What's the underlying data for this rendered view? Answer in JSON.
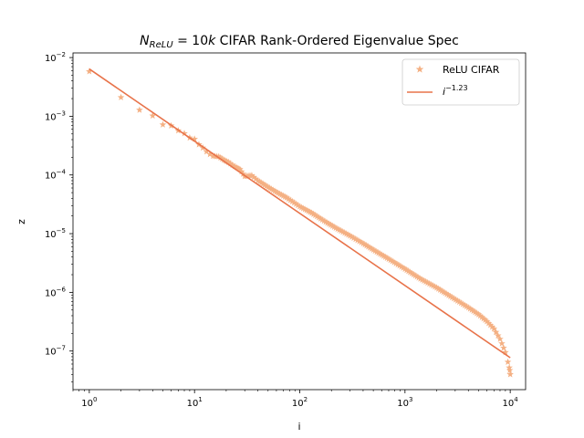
{
  "chart_data": {
    "type": "scatter",
    "title": {
      "n_symbol": "N",
      "n_subscript": "ReLU",
      "equals": " = 10",
      "k": "k",
      "rest": " CIFAR Rank-Ordered Eigenvalue Spec"
    },
    "xlabel": "i",
    "ylabel": "z",
    "xscale": "log",
    "yscale": "log",
    "xlim": [
      0.7,
      14000
    ],
    "ylim": [
      2.2e-08,
      0.012
    ],
    "x_ticks": [
      {
        "value": 1,
        "base": "10",
        "exp": "0"
      },
      {
        "value": 10,
        "base": "10",
        "exp": "1"
      },
      {
        "value": 100,
        "base": "10",
        "exp": "2"
      },
      {
        "value": 1000,
        "base": "10",
        "exp": "3"
      },
      {
        "value": 10000,
        "base": "10",
        "exp": "4"
      }
    ],
    "y_ticks": [
      {
        "value": 1e-07,
        "base": "10",
        "exp": "−7"
      },
      {
        "value": 1e-06,
        "base": "10",
        "exp": "−6"
      },
      {
        "value": 1e-05,
        "base": "10",
        "exp": "−5"
      },
      {
        "value": 0.0001,
        "base": "10",
        "exp": "−4"
      },
      {
        "value": 0.001,
        "base": "10",
        "exp": "−3"
      },
      {
        "value": 0.01,
        "base": "10",
        "exp": "−2"
      }
    ],
    "legend_position": "upper-right",
    "series": [
      {
        "name": "ReLU CIFAR",
        "kind": "scatter",
        "marker": "star",
        "color": "#f4b083",
        "points": [
          [
            1,
            0.0058
          ],
          [
            2,
            0.0021
          ],
          [
            3,
            0.00128
          ],
          [
            4,
            0.00102
          ],
          [
            5,
            0.00072
          ],
          [
            6,
            0.00069
          ],
          [
            7,
            0.00057
          ],
          [
            8,
            0.00051
          ],
          [
            9,
            0.00043
          ],
          [
            10,
            0.00041
          ],
          [
            11,
            0.00033
          ],
          [
            12,
            0.00029
          ],
          [
            13,
            0.00025
          ],
          [
            14,
            0.000225
          ],
          [
            15,
            0.00021
          ],
          [
            17,
            0.000205
          ],
          [
            19,
            0.00018
          ],
          [
            21,
            0.000165
          ],
          [
            24,
            0.00014
          ],
          [
            27,
            0.000125
          ],
          [
            30,
            9.5e-05
          ],
          [
            35,
            9.8e-05
          ],
          [
            40,
            8e-05
          ],
          [
            50,
            6.2e-05
          ],
          [
            60,
            5.1e-05
          ],
          [
            75,
            4.1e-05
          ],
          [
            100,
            2.9e-05
          ],
          [
            130,
            2.25e-05
          ],
          [
            170,
            1.65e-05
          ],
          [
            220,
            1.25e-05
          ],
          [
            300,
            9.2e-06
          ],
          [
            400,
            6.8e-06
          ],
          [
            500,
            5.3e-06
          ],
          [
            700,
            3.7e-06
          ],
          [
            1000,
            2.5e-06
          ],
          [
            1400,
            1.7e-06
          ],
          [
            2000,
            1.2e-06
          ],
          [
            2800,
            8.2e-07
          ],
          [
            4000,
            5.5e-07
          ],
          [
            5000,
            4.2e-07
          ],
          [
            6000,
            3.2e-07
          ],
          [
            7000,
            2.4e-07
          ],
          [
            8000,
            1.6e-07
          ],
          [
            9000,
            9.5e-08
          ],
          [
            9500,
            6.5e-08
          ],
          [
            9800,
            5.2e-08
          ],
          [
            9900,
            4.7e-08
          ],
          [
            10000,
            4e-08
          ]
        ]
      },
      {
        "name_base": "i",
        "name_exp": "−1.23",
        "kind": "line",
        "color": "#e8734a",
        "coefficient": 0.0064,
        "exponent": -1.23,
        "x_range": [
          1,
          10000
        ]
      }
    ]
  }
}
